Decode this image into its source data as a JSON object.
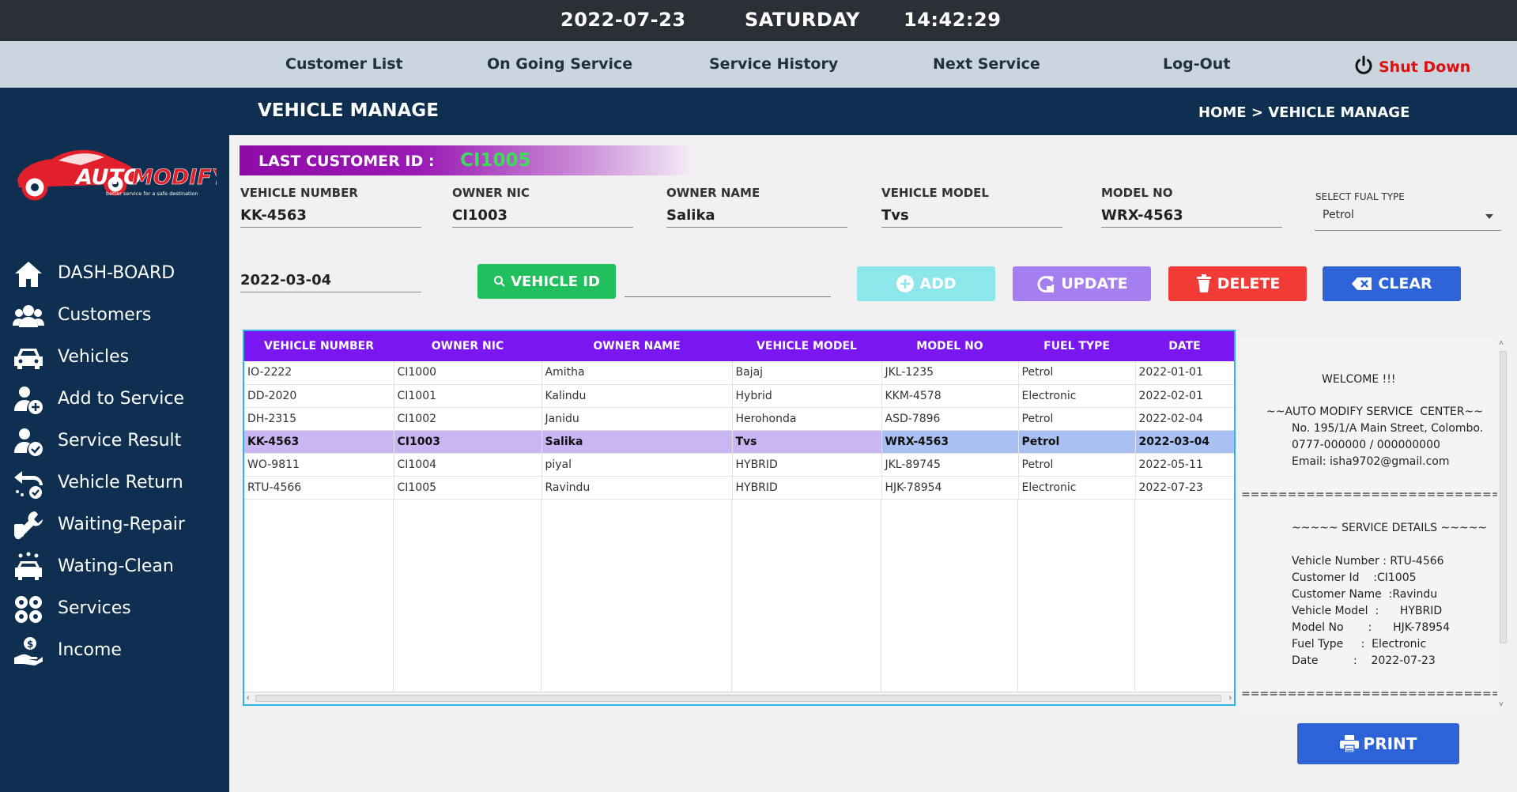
{
  "topbar": {
    "date": "2022-07-23",
    "day": "SATURDAY",
    "time": "14:42:29"
  },
  "nav": {
    "customer_list": "Customer List",
    "ongoing": "On Going Service",
    "history": "Service History",
    "next": "Next Service",
    "logout": "Log-Out",
    "shutdown": "Shut Down"
  },
  "logo": {
    "text1": "AUTO",
    "text2": "MODIFY",
    "tagline": "better service for a safe destination",
    "brand_color": "#e2202b"
  },
  "sidebar": {
    "items": [
      {
        "label": "DASH-BOARD",
        "icon": "home-icon"
      },
      {
        "label": "Customers",
        "icon": "users-icon"
      },
      {
        "label": "Vehicles",
        "icon": "car-icon"
      },
      {
        "label": "Add to Service",
        "icon": "person-add-icon"
      },
      {
        "label": "Service Result",
        "icon": "person-check-icon"
      },
      {
        "label": "Vehicle Return",
        "icon": "return-icon"
      },
      {
        "label": "Waiting-Repair",
        "icon": "wrench-icon"
      },
      {
        "label": "Wating-Clean",
        "icon": "car-wash-icon"
      },
      {
        "label": "Services",
        "icon": "gears-icon"
      },
      {
        "label": "Income",
        "icon": "money-hand-icon"
      }
    ]
  },
  "header": {
    "title": "VEHICLE MANAGE",
    "crumb_home": "HOME",
    "crumb_sep": ">",
    "crumb_page": "VEHICLE MANAGE"
  },
  "last_customer": {
    "label": "LAST CUSTOMER ID   :",
    "value": "CI1005"
  },
  "form": {
    "vehicle_number_label": "VEHICLE NUMBER",
    "vehicle_number": "KK-4563",
    "owner_nic_label": "OWNER NIC",
    "owner_nic": "CI1003",
    "owner_name_label": "OWNER NAME",
    "owner_name": "Salika",
    "vehicle_model_label": "VEHICLE MODEL",
    "vehicle_model": "Tvs",
    "model_no_label": "MODEL NO",
    "model_no": "WRX-4563",
    "fuel_label": "SELECT FUAL TYPE",
    "fuel": "Petrol",
    "date": "2022-03-04",
    "vehicle_id_search": ""
  },
  "buttons": {
    "vehicle_id": "VEHICLE ID",
    "add": "ADD",
    "update": "UPDATE",
    "delete": "DELETE",
    "clear": "CLEAR",
    "print": "PRINT"
  },
  "table": {
    "headers": [
      "VEHICLE NUMBER",
      "OWNER NIC",
      "OWNER NAME",
      "VEHICLE MODEL",
      "MODEL NO",
      "FUEL TYPE",
      "DATE"
    ],
    "rows": [
      [
        "IO-2222",
        "CI1000",
        "Amitha",
        "Bajaj",
        "JKL-1235",
        "Petrol",
        "2022-01-01"
      ],
      [
        "DD-2020",
        "CI1001",
        "Kalindu",
        "Hybrid",
        "KKM-4578",
        "Electronic",
        "2022-02-01"
      ],
      [
        "DH-2315",
        "CI1002",
        "Janidu",
        "Herohonda",
        "ASD-7896",
        "Petrol",
        "2022-02-04"
      ],
      [
        "KK-4563",
        "CI1003",
        "Salika",
        "Tvs",
        "WRX-4563",
        "Petrol",
        "2022-03-04"
      ],
      [
        "WO-9811",
        "CI1004",
        "piyal",
        "HYBRID",
        "JKL-89745",
        "Petrol",
        "2022-05-11"
      ],
      [
        "RTU-4566",
        "CI1005",
        "Ravindu",
        "HYBRID",
        "HJK-78954",
        "Electronic",
        "2022-07-23"
      ]
    ],
    "selected_row": 3
  },
  "receipt": {
    "welcome": "WELCOME !!!",
    "center": "~~AUTO MODIFY SERVICE  CENTER~~",
    "address": "No. 195/1/A Main Street, Colombo.",
    "phone": "0777-000000 / 000000000",
    "email": "Email: isha9702@gmail.com",
    "sep1": "==============================",
    "details_title": "~~~~~ SERVICE DETAILS ~~~~~",
    "vehicle_number": "Vehicle Number : RTU-4566",
    "customer_id": "Customer Id    :CI1005",
    "customer_name": "Customer Name  :Ravindu",
    "vehicle_model": "Vehicle Model  :      HYBRID",
    "model_no": "Model No       :      HJK-78954",
    "fuel": "Fuel Type     :  Electronic",
    "date": "Date          :    2022-07-23",
    "sep2": "=============================="
  },
  "colors": {
    "dark_navy": "#0e2f4f",
    "purple_header": "#7a17f0",
    "green": "#22bf5e",
    "cyan": "#8ce6ea",
    "violet": "#a57ef0",
    "red": "#f23a36",
    "blue": "#2d63d6"
  }
}
